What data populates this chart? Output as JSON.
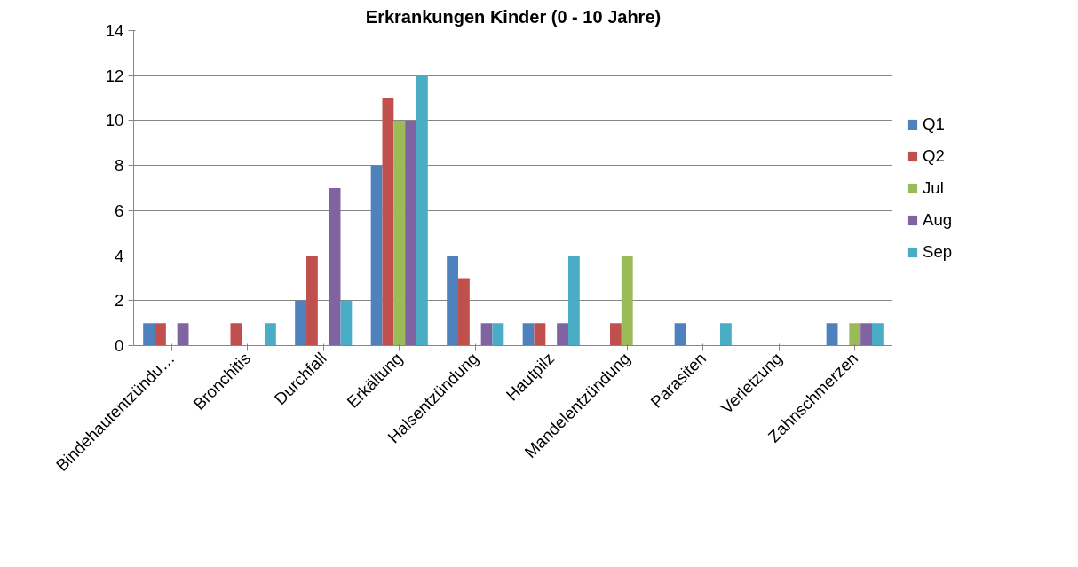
{
  "chart_data": {
    "type": "bar",
    "title": "Erkrankungen Kinder (0 - 10 Jahre)",
    "categories": [
      "Bindehautentzündu…",
      "Bronchitis",
      "Durchfall",
      "Erkältung",
      "Halsentzündung",
      "Hautpilz",
      "Mandelentzündung",
      "Parasiten",
      "Verletzung",
      "Zahnschmerzen"
    ],
    "series": [
      {
        "name": "Q1",
        "color": "#4f81bd",
        "values": [
          1,
          null,
          2,
          8,
          4,
          1,
          null,
          1,
          null,
          1
        ]
      },
      {
        "name": "Q2",
        "color": "#c0504d",
        "values": [
          1,
          1,
          4,
          11,
          3,
          1,
          1,
          null,
          null,
          null
        ]
      },
      {
        "name": "Jul",
        "color": "#9bbb59",
        "values": [
          null,
          null,
          null,
          10,
          null,
          null,
          4,
          null,
          null,
          1
        ]
      },
      {
        "name": "Aug",
        "color": "#8064a2",
        "values": [
          1,
          null,
          7,
          10,
          1,
          1,
          null,
          null,
          null,
          1
        ]
      },
      {
        "name": "Sep",
        "color": "#4bacc6",
        "values": [
          null,
          1,
          2,
          12,
          1,
          4,
          null,
          1,
          null,
          1
        ]
      }
    ],
    "ylim": [
      0,
      14
    ],
    "yticks": [
      0,
      2,
      4,
      6,
      8,
      10,
      12,
      14
    ],
    "grid": "y",
    "legend": "right"
  }
}
